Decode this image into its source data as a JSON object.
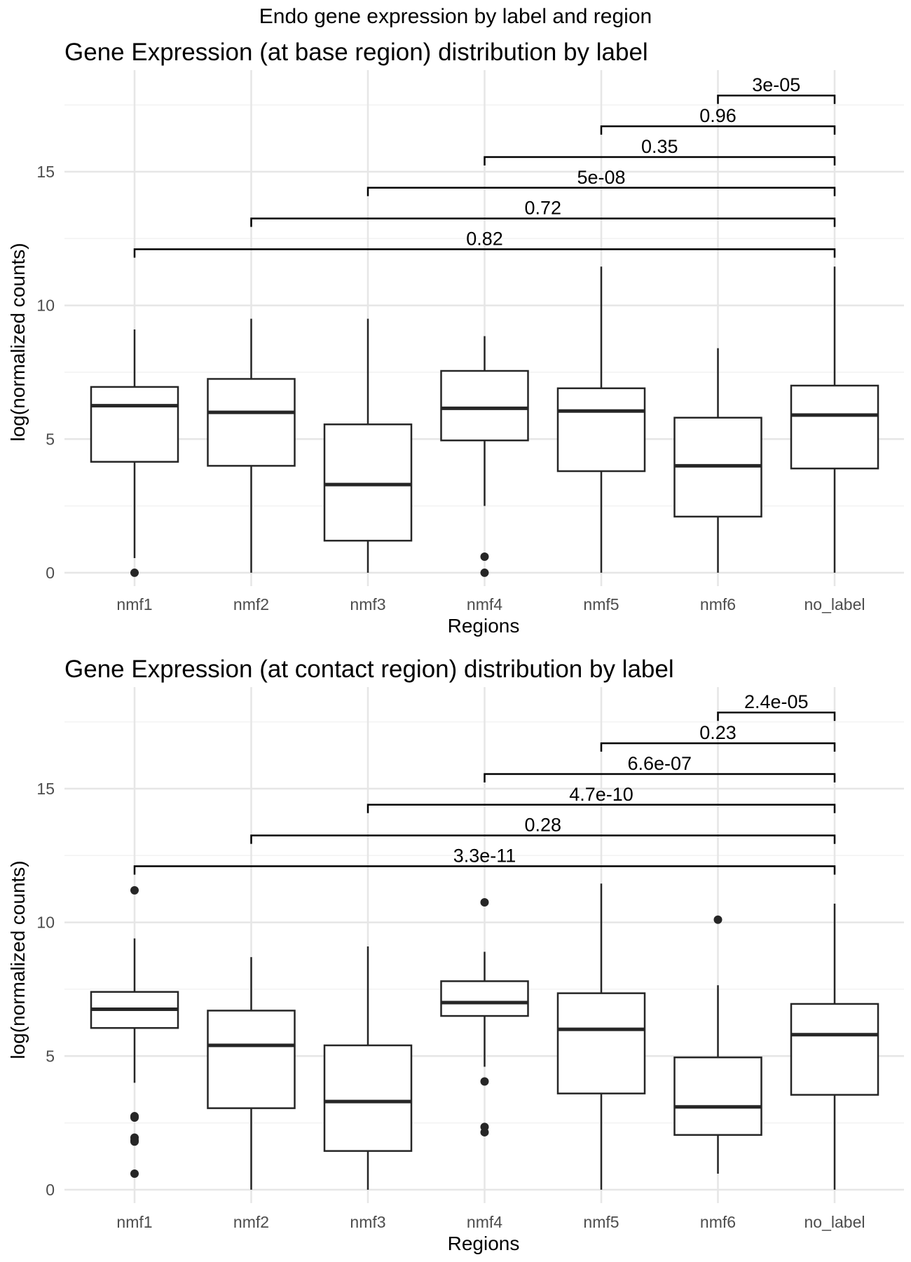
{
  "figure": {
    "suptitle": "Endo gene expression by label and region"
  },
  "chart_data": [
    {
      "type": "box",
      "title": "Gene Expression (at base region) distribution by label",
      "xlabel": "Regions",
      "ylabel": "log(normalized counts)",
      "categories": [
        "nmf1",
        "nmf2",
        "nmf3",
        "nmf4",
        "nmf5",
        "nmf6",
        "no_label"
      ],
      "ylim": [
        -0.5,
        18.8
      ],
      "yticks": [
        0,
        5,
        10,
        15
      ],
      "ytick_labels": [
        "0",
        "5",
        "10",
        "15"
      ],
      "grid": true,
      "boxes": [
        {
          "category": "nmf1",
          "whisker_low": 0.55,
          "q1": 4.15,
          "median": 6.25,
          "q3": 6.95,
          "whisker_high": 9.1,
          "outliers": [
            0.0
          ]
        },
        {
          "category": "nmf2",
          "whisker_low": 0.0,
          "q1": 4.0,
          "median": 6.0,
          "q3": 7.25,
          "whisker_high": 9.5,
          "outliers": []
        },
        {
          "category": "nmf3",
          "whisker_low": 0.0,
          "q1": 1.2,
          "median": 3.3,
          "q3": 5.55,
          "whisker_high": 9.5,
          "outliers": []
        },
        {
          "category": "nmf4",
          "whisker_low": 2.5,
          "q1": 4.95,
          "median": 6.15,
          "q3": 7.55,
          "whisker_high": 8.85,
          "outliers": [
            0.6,
            0.0
          ]
        },
        {
          "category": "nmf5",
          "whisker_low": 0.0,
          "q1": 3.8,
          "median": 6.05,
          "q3": 6.9,
          "whisker_high": 11.45,
          "outliers": []
        },
        {
          "category": "nmf6",
          "whisker_low": 0.0,
          "q1": 2.1,
          "median": 4.0,
          "q3": 5.8,
          "whisker_high": 8.4,
          "outliers": []
        },
        {
          "category": "no_label",
          "whisker_low": 0.0,
          "q1": 3.9,
          "median": 5.9,
          "q3": 7.0,
          "whisker_high": 11.45,
          "outliers": []
        }
      ],
      "comparisons": [
        {
          "group1": "nmf1",
          "group2": "no_label",
          "y": 12.1,
          "label": "0.82"
        },
        {
          "group1": "nmf2",
          "group2": "no_label",
          "y": 13.25,
          "label": "0.72"
        },
        {
          "group1": "nmf3",
          "group2": "no_label",
          "y": 14.4,
          "label": "5e-08"
        },
        {
          "group1": "nmf4",
          "group2": "no_label",
          "y": 15.55,
          "label": "0.35"
        },
        {
          "group1": "nmf5",
          "group2": "no_label",
          "y": 16.7,
          "label": "0.96"
        },
        {
          "group1": "nmf6",
          "group2": "no_label",
          "y": 17.85,
          "label": "3e-05"
        }
      ]
    },
    {
      "type": "box",
      "title": "Gene Expression (at contact region) distribution by label",
      "xlabel": "Regions",
      "ylabel": "log(normalized counts)",
      "categories": [
        "nmf1",
        "nmf2",
        "nmf3",
        "nmf4",
        "nmf5",
        "nmf6",
        "no_label"
      ],
      "ylim": [
        -0.5,
        18.8
      ],
      "yticks": [
        0,
        5,
        10,
        15
      ],
      "ytick_labels": [
        "0",
        "5",
        "10",
        "15"
      ],
      "grid": true,
      "boxes": [
        {
          "category": "nmf1",
          "whisker_low": 4.0,
          "q1": 6.05,
          "median": 6.75,
          "q3": 7.4,
          "whisker_high": 9.4,
          "outliers": [
            11.2,
            2.75,
            2.7,
            1.95,
            1.85,
            1.8,
            0.6
          ]
        },
        {
          "category": "nmf2",
          "whisker_low": 0.0,
          "q1": 3.05,
          "median": 5.4,
          "q3": 6.7,
          "whisker_high": 8.7,
          "outliers": []
        },
        {
          "category": "nmf3",
          "whisker_low": 0.0,
          "q1": 1.45,
          "median": 3.3,
          "q3": 5.4,
          "whisker_high": 9.1,
          "outliers": []
        },
        {
          "category": "nmf4",
          "whisker_low": 4.6,
          "q1": 6.5,
          "median": 7.0,
          "q3": 7.8,
          "whisker_high": 8.9,
          "outliers": [
            10.75,
            4.05,
            2.35,
            2.15
          ]
        },
        {
          "category": "nmf5",
          "whisker_low": 0.0,
          "q1": 3.6,
          "median": 6.0,
          "q3": 7.35,
          "whisker_high": 11.45,
          "outliers": []
        },
        {
          "category": "nmf6",
          "whisker_low": 0.6,
          "q1": 2.05,
          "median": 3.1,
          "q3": 4.95,
          "whisker_high": 7.65,
          "outliers": [
            10.1
          ]
        },
        {
          "category": "no_label",
          "whisker_low": 0.0,
          "q1": 3.55,
          "median": 5.8,
          "q3": 6.95,
          "whisker_high": 10.7,
          "outliers": []
        }
      ],
      "comparisons": [
        {
          "group1": "nmf1",
          "group2": "no_label",
          "y": 12.1,
          "label": "3.3e-11"
        },
        {
          "group1": "nmf2",
          "group2": "no_label",
          "y": 13.25,
          "label": "0.28"
        },
        {
          "group1": "nmf3",
          "group2": "no_label",
          "y": 14.4,
          "label": "4.7e-10"
        },
        {
          "group1": "nmf4",
          "group2": "no_label",
          "y": 15.55,
          "label": "6.6e-07"
        },
        {
          "group1": "nmf5",
          "group2": "no_label",
          "y": 16.7,
          "label": "0.23"
        },
        {
          "group1": "nmf6",
          "group2": "no_label",
          "y": 17.85,
          "label": "2.4e-05"
        }
      ]
    }
  ],
  "style": {
    "box_stroke": "#262626",
    "grid_major": "#e6e6e6",
    "grid_minor": "#f2f2f2",
    "bracket_stroke": "#000000",
    "outlier_fill": "#262626"
  }
}
